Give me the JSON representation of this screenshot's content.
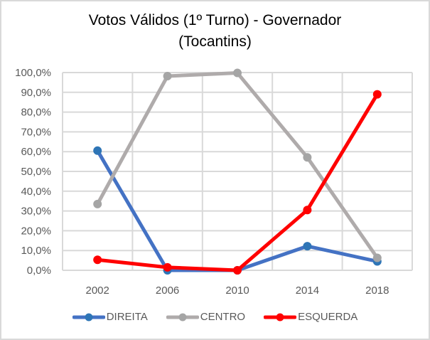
{
  "title": {
    "line1": "Votos Válidos (1º Turno) - Governador",
    "line2": "(Tocantins)"
  },
  "y_axis": {
    "ticks": [
      "100,0%",
      "90,0%",
      "80,0%",
      "70,0%",
      "60,0%",
      "50,0%",
      "40,0%",
      "30,0%",
      "20,0%",
      "10,0%",
      "0,0%"
    ]
  },
  "x_axis": {
    "ticks": [
      "2002",
      "2006",
      "2010",
      "2014",
      "2018"
    ]
  },
  "legend": [
    {
      "label": "DIREITA",
      "color": "#4472c4",
      "marker": "#2e75b6"
    },
    {
      "label": "CENTRO",
      "color": "#afabab",
      "marker": "#a5a5a5"
    },
    {
      "label": "ESQUERDA",
      "color": "#ff0000",
      "marker": "#ff0000"
    }
  ],
  "chart_data": {
    "type": "line",
    "title": "Votos Válidos (1º Turno) - Governador (Tocantins)",
    "xlabel": "",
    "ylabel": "",
    "categories": [
      "2002",
      "2006",
      "2010",
      "2014",
      "2018"
    ],
    "series": [
      {
        "name": "DIREITA",
        "color": "#4472c4",
        "values": [
          60.5,
          0.0,
          0.0,
          12.2,
          4.5
        ]
      },
      {
        "name": "CENTRO",
        "color": "#afabab",
        "values": [
          33.5,
          98.2,
          99.8,
          57.1,
          6.3
        ]
      },
      {
        "name": "ESQUERDA",
        "color": "#ff0000",
        "values": [
          5.3,
          1.5,
          0.0,
          30.5,
          89.0
        ]
      }
    ],
    "ylim": [
      0,
      100
    ],
    "y_tick_format": "0,0%",
    "grid": {
      "horizontal": true,
      "vertical": true
    },
    "legend_position": "bottom"
  }
}
